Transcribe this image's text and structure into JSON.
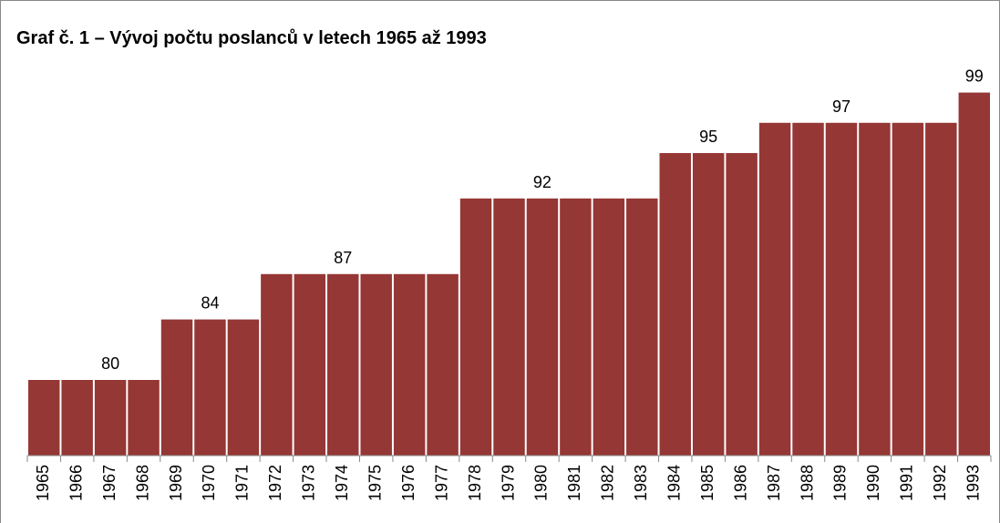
{
  "chart_data": {
    "type": "bar",
    "title": "Graf č. 1 – Vývoj počtu poslanců v letech 1965 až 1993",
    "categories": [
      "1965",
      "1966",
      "1967",
      "1968",
      "1969",
      "1970",
      "1971",
      "1972",
      "1973",
      "1974",
      "1975",
      "1976",
      "1977",
      "1978",
      "1979",
      "1980",
      "1981",
      "1982",
      "1983",
      "1984",
      "1985",
      "1986",
      "1987",
      "1988",
      "1989",
      "1990",
      "1991",
      "1992",
      "1993"
    ],
    "values": [
      80,
      80,
      80,
      80,
      84,
      84,
      84,
      87,
      87,
      87,
      87,
      87,
      87,
      92,
      92,
      92,
      92,
      92,
      92,
      95,
      95,
      95,
      97,
      97,
      97,
      97,
      97,
      97,
      99
    ],
    "value_labels": [
      null,
      null,
      80,
      null,
      null,
      84,
      null,
      null,
      null,
      87,
      null,
      null,
      null,
      null,
      null,
      92,
      null,
      null,
      null,
      null,
      95,
      null,
      null,
      null,
      97,
      null,
      null,
      null,
      99
    ],
    "color": "#953735",
    "ylim": [
      75,
      100
    ]
  }
}
